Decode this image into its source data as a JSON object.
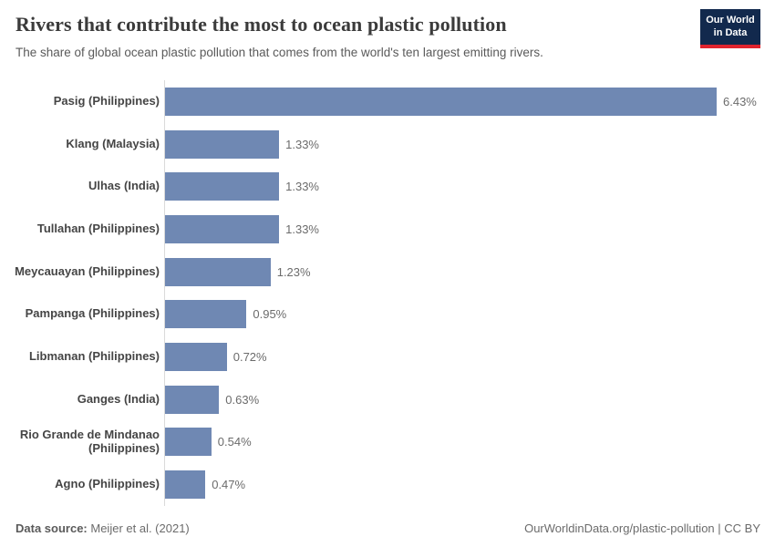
{
  "header": {
    "title": "Rivers that contribute the most to ocean plastic pollution",
    "subtitle": "The share of global ocean plastic pollution that comes from the world's ten largest emitting rivers.",
    "logo": {
      "line1": "Our World",
      "line2": "in Data"
    }
  },
  "chart_data": {
    "type": "bar",
    "orientation": "horizontal",
    "title": "Rivers that contribute the most to ocean plastic pollution",
    "subtitle": "The share of global ocean plastic pollution that comes from the world's ten largest emitting rivers.",
    "unit": "%",
    "categories": [
      "Pasig (Philippines)",
      "Klang (Malaysia)",
      "Ulhas (India)",
      "Tullahan (Philippines)",
      "Meycauayan (Philippines)",
      "Pampanga (Philippines)",
      "Libmanan (Philippines)",
      "Ganges (India)",
      "Rio Grande de Mindanao (Philippines)",
      "Agno (Philippines)"
    ],
    "values": [
      6.43,
      1.33,
      1.33,
      1.33,
      1.23,
      0.95,
      0.72,
      0.63,
      0.54,
      0.47
    ],
    "value_labels": [
      "6.43%",
      "1.33%",
      "1.33%",
      "1.33%",
      "1.23%",
      "0.95%",
      "0.72%",
      "0.63%",
      "0.54%",
      "0.47%"
    ],
    "xlim": [
      0,
      6.43
    ],
    "grid": false,
    "legend": "none",
    "bar_color": "#6f88b3"
  },
  "footer": {
    "datasource_label": "Data source:",
    "datasource_value": "Meijer et al. (2021)",
    "link": "OurWorldinData.org/plastic-pollution",
    "separator": " | ",
    "license": "CC BY"
  },
  "colors": {
    "bar": "#6f88b3",
    "axis_line": "#dadada",
    "title_text": "#3b3b3b",
    "subtitle_text": "#5a5a5a",
    "value_text": "#6b6b6b",
    "logo_navy": "#12294d",
    "logo_red": "#e0232e",
    "background": "#ffffff"
  }
}
